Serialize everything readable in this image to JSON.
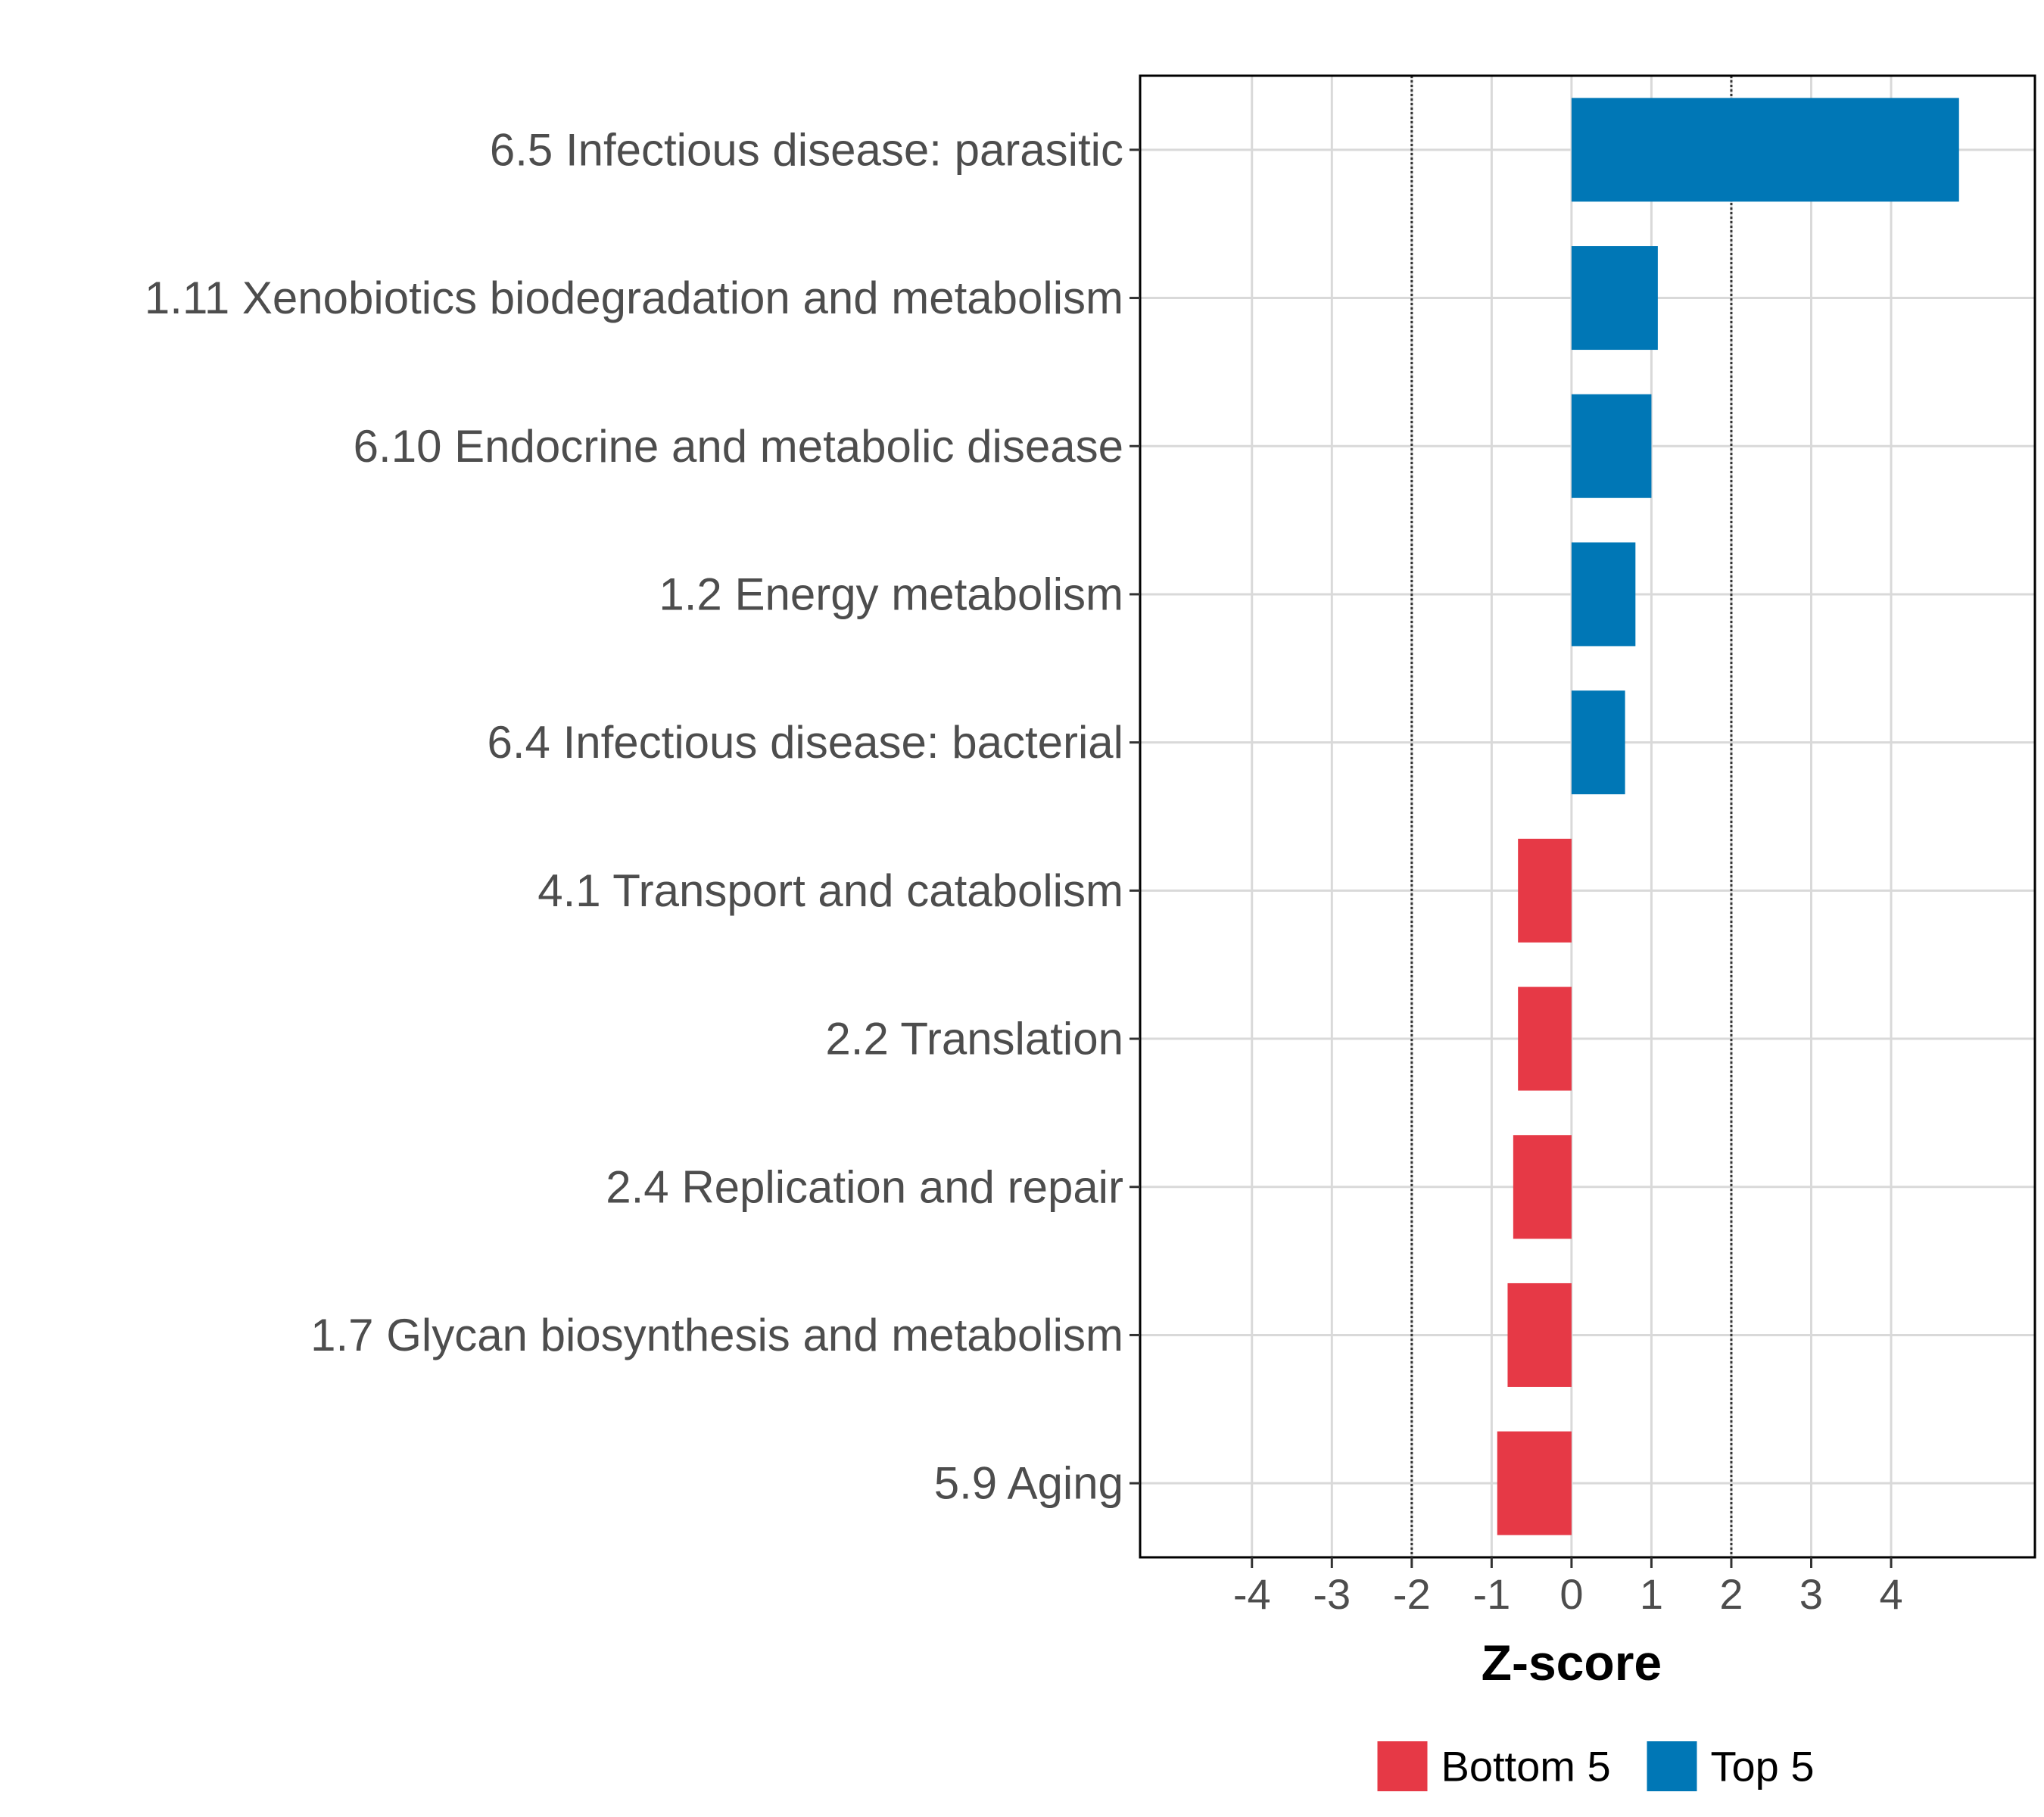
{
  "chart_data": {
    "type": "bar",
    "orientation": "horizontal",
    "title": "",
    "xlabel": "Z-score",
    "ylabel": "",
    "xlim": [
      -5.4,
      5.8
    ],
    "xticks": [
      -4,
      -3,
      -2,
      -1,
      0,
      1,
      2,
      3,
      4
    ],
    "reference_lines": [
      -2,
      2
    ],
    "grid": true,
    "legend_position": "bottom",
    "categories": [
      "6.5 Infectious disease: parasitic",
      "1.11 Xenobiotics biodegradation and metabolism",
      "6.10 Endocrine and metabolic disease",
      "1.2 Energy metabolism",
      "6.4 Infectious disease: bacterial",
      "4.1 Transport and catabolism",
      "2.2 Translation",
      "2.4 Replication and repair",
      "1.7 Glycan biosynthesis and metabolism",
      "5.9 Aging"
    ],
    "values": [
      4.85,
      1.08,
      1.0,
      0.8,
      0.67,
      -0.67,
      -0.67,
      -0.73,
      -0.8,
      -0.93
    ],
    "groups": [
      "Top 5",
      "Top 5",
      "Top 5",
      "Top 5",
      "Top 5",
      "Bottom 5",
      "Bottom 5",
      "Bottom 5",
      "Bottom 5",
      "Bottom 5"
    ],
    "legend": [
      {
        "name": "Bottom 5",
        "color": "#E63946"
      },
      {
        "name": "Top 5",
        "color": "#0077B6"
      }
    ]
  }
}
